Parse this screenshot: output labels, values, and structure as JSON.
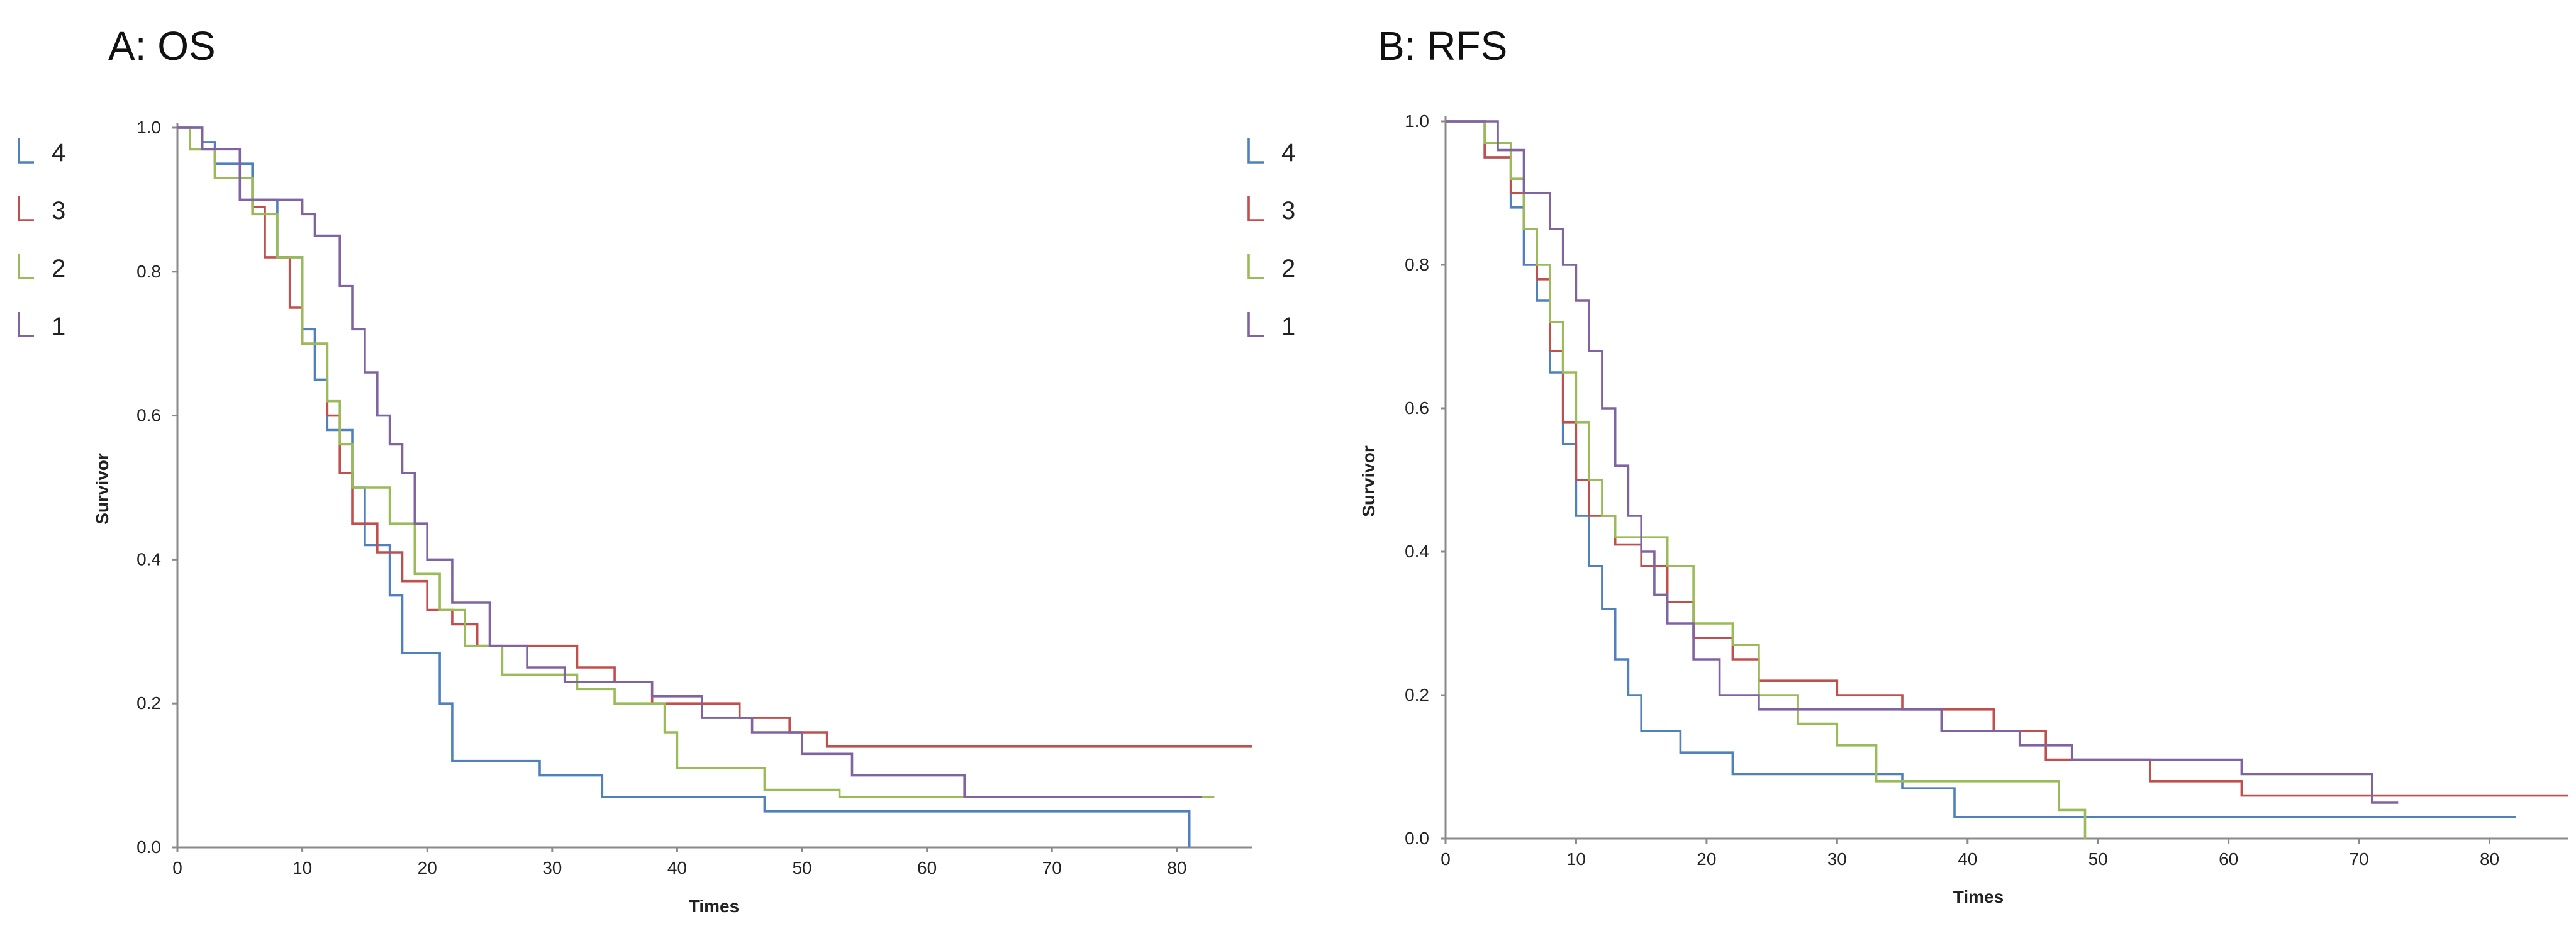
{
  "chart_data": [
    {
      "type": "line",
      "title": "A: OS",
      "xlabel": "Times",
      "ylabel": "Survivor",
      "xlim": [
        0,
        86
      ],
      "ylim": [
        0,
        1.0
      ],
      "xticks": [
        "0",
        "10",
        "20",
        "30",
        "40",
        "50",
        "60",
        "70",
        "80"
      ],
      "yticks": [
        "0.0",
        "0.2",
        "0.4",
        "0.6",
        "0.8",
        "1.0"
      ],
      "legend": [
        "4",
        "3",
        "2",
        "1"
      ],
      "legend_position": "left",
      "series": [
        {
          "name": "4",
          "color": "#4f81bd",
          "points": [
            [
              0,
              1.0
            ],
            [
              2,
              0.98
            ],
            [
              3,
              0.95
            ],
            [
              6,
              0.9
            ],
            [
              8,
              0.82
            ],
            [
              10,
              0.72
            ],
            [
              11,
              0.65
            ],
            [
              12,
              0.58
            ],
            [
              14,
              0.5
            ],
            [
              15,
              0.42
            ],
            [
              17,
              0.35
            ],
            [
              18,
              0.27
            ],
            [
              21,
              0.2
            ],
            [
              22,
              0.12
            ],
            [
              29,
              0.1
            ],
            [
              34,
              0.07
            ],
            [
              47,
              0.05
            ],
            [
              81,
              0.05
            ],
            [
              81,
              0.0
            ]
          ]
        },
        {
          "name": "3",
          "color": "#c0504d",
          "points": [
            [
              0,
              1.0
            ],
            [
              1,
              0.97
            ],
            [
              3,
              0.93
            ],
            [
              6,
              0.89
            ],
            [
              7,
              0.82
            ],
            [
              9,
              0.75
            ],
            [
              10,
              0.7
            ],
            [
              12,
              0.6
            ],
            [
              13,
              0.52
            ],
            [
              14,
              0.45
            ],
            [
              16,
              0.41
            ],
            [
              18,
              0.37
            ],
            [
              20,
              0.33
            ],
            [
              22,
              0.31
            ],
            [
              24,
              0.28
            ],
            [
              32,
              0.25
            ],
            [
              35,
              0.23
            ],
            [
              38,
              0.2
            ],
            [
              45,
              0.18
            ],
            [
              49,
              0.16
            ],
            [
              52,
              0.14
            ],
            [
              86,
              0.14
            ]
          ]
        },
        {
          "name": "2",
          "color": "#9bbb59",
          "points": [
            [
              0,
              1.0
            ],
            [
              1,
              0.97
            ],
            [
              3,
              0.93
            ],
            [
              6,
              0.88
            ],
            [
              8,
              0.82
            ],
            [
              10,
              0.7
            ],
            [
              12,
              0.62
            ],
            [
              13,
              0.56
            ],
            [
              14,
              0.5
            ],
            [
              17,
              0.45
            ],
            [
              19,
              0.38
            ],
            [
              21,
              0.33
            ],
            [
              23,
              0.28
            ],
            [
              26,
              0.24
            ],
            [
              32,
              0.22
            ],
            [
              35,
              0.2
            ],
            [
              39,
              0.16
            ],
            [
              40,
              0.11
            ],
            [
              47,
              0.08
            ],
            [
              53,
              0.07
            ],
            [
              83,
              0.07
            ]
          ]
        },
        {
          "name": "1",
          "color": "#8064a2",
          "points": [
            [
              0,
              1.0
            ],
            [
              2,
              0.97
            ],
            [
              5,
              0.9
            ],
            [
              10,
              0.88
            ],
            [
              11,
              0.85
            ],
            [
              13,
              0.78
            ],
            [
              14,
              0.72
            ],
            [
              15,
              0.66
            ],
            [
              16,
              0.6
            ],
            [
              17,
              0.56
            ],
            [
              18,
              0.52
            ],
            [
              19,
              0.45
            ],
            [
              20,
              0.4
            ],
            [
              22,
              0.34
            ],
            [
              25,
              0.28
            ],
            [
              28,
              0.25
            ],
            [
              31,
              0.23
            ],
            [
              38,
              0.21
            ],
            [
              42,
              0.18
            ],
            [
              46,
              0.16
            ],
            [
              50,
              0.13
            ],
            [
              54,
              0.1
            ],
            [
              63,
              0.07
            ],
            [
              82,
              0.07
            ]
          ]
        }
      ]
    },
    {
      "type": "line",
      "title": "B: RFS",
      "xlabel": "Times",
      "ylabel": "Survivor",
      "xlim": [
        0,
        86
      ],
      "ylim": [
        0,
        1.0
      ],
      "xticks": [
        "0",
        "10",
        "20",
        "30",
        "40",
        "50",
        "60",
        "70",
        "80"
      ],
      "yticks": [
        "0.0",
        "0.2",
        "0.4",
        "0.6",
        "0.8",
        "1.0"
      ],
      "legend": [
        "4",
        "3",
        "2",
        "1"
      ],
      "legend_position": "left",
      "series": [
        {
          "name": "4",
          "color": "#4f81bd",
          "points": [
            [
              0,
              1.0
            ],
            [
              3,
              0.95
            ],
            [
              5,
              0.88
            ],
            [
              6,
              0.8
            ],
            [
              7,
              0.75
            ],
            [
              8,
              0.65
            ],
            [
              9,
              0.55
            ],
            [
              10,
              0.45
            ],
            [
              11,
              0.38
            ],
            [
              12,
              0.32
            ],
            [
              13,
              0.25
            ],
            [
              14,
              0.2
            ],
            [
              15,
              0.15
            ],
            [
              18,
              0.12
            ],
            [
              22,
              0.09
            ],
            [
              35,
              0.07
            ],
            [
              39,
              0.03
            ],
            [
              82,
              0.03
            ]
          ]
        },
        {
          "name": "3",
          "color": "#c0504d",
          "points": [
            [
              0,
              1.0
            ],
            [
              3,
              0.95
            ],
            [
              5,
              0.9
            ],
            [
              6,
              0.85
            ],
            [
              7,
              0.78
            ],
            [
              8,
              0.68
            ],
            [
              9,
              0.58
            ],
            [
              10,
              0.5
            ],
            [
              11,
              0.45
            ],
            [
              13,
              0.41
            ],
            [
              15,
              0.38
            ],
            [
              17,
              0.33
            ],
            [
              19,
              0.28
            ],
            [
              22,
              0.25
            ],
            [
              24,
              0.22
            ],
            [
              30,
              0.2
            ],
            [
              35,
              0.18
            ],
            [
              42,
              0.15
            ],
            [
              46,
              0.11
            ],
            [
              54,
              0.08
            ],
            [
              61,
              0.06
            ],
            [
              70,
              0.06
            ],
            [
              86,
              0.06
            ]
          ]
        },
        {
          "name": "2",
          "color": "#9bbb59",
          "points": [
            [
              0,
              1.0
            ],
            [
              3,
              0.97
            ],
            [
              5,
              0.92
            ],
            [
              6,
              0.85
            ],
            [
              7,
              0.8
            ],
            [
              8,
              0.72
            ],
            [
              9,
              0.65
            ],
            [
              10,
              0.58
            ],
            [
              11,
              0.5
            ],
            [
              12,
              0.45
            ],
            [
              13,
              0.42
            ],
            [
              17,
              0.38
            ],
            [
              19,
              0.3
            ],
            [
              22,
              0.27
            ],
            [
              24,
              0.2
            ],
            [
              27,
              0.16
            ],
            [
              30,
              0.13
            ],
            [
              33,
              0.08
            ],
            [
              47,
              0.04
            ],
            [
              49,
              0.0
            ]
          ]
        },
        {
          "name": "1",
          "color": "#8064a2",
          "points": [
            [
              0,
              1.0
            ],
            [
              4,
              0.96
            ],
            [
              6,
              0.9
            ],
            [
              8,
              0.85
            ],
            [
              9,
              0.8
            ],
            [
              10,
              0.75
            ],
            [
              11,
              0.68
            ],
            [
              12,
              0.6
            ],
            [
              13,
              0.52
            ],
            [
              14,
              0.45
            ],
            [
              15,
              0.4
            ],
            [
              16,
              0.34
            ],
            [
              17,
              0.3
            ],
            [
              19,
              0.25
            ],
            [
              21,
              0.2
            ],
            [
              24,
              0.18
            ],
            [
              28,
              0.18
            ],
            [
              38,
              0.15
            ],
            [
              44,
              0.13
            ],
            [
              48,
              0.11
            ],
            [
              61,
              0.09
            ],
            [
              71,
              0.05
            ],
            [
              73,
              0.05
            ]
          ]
        }
      ]
    }
  ]
}
